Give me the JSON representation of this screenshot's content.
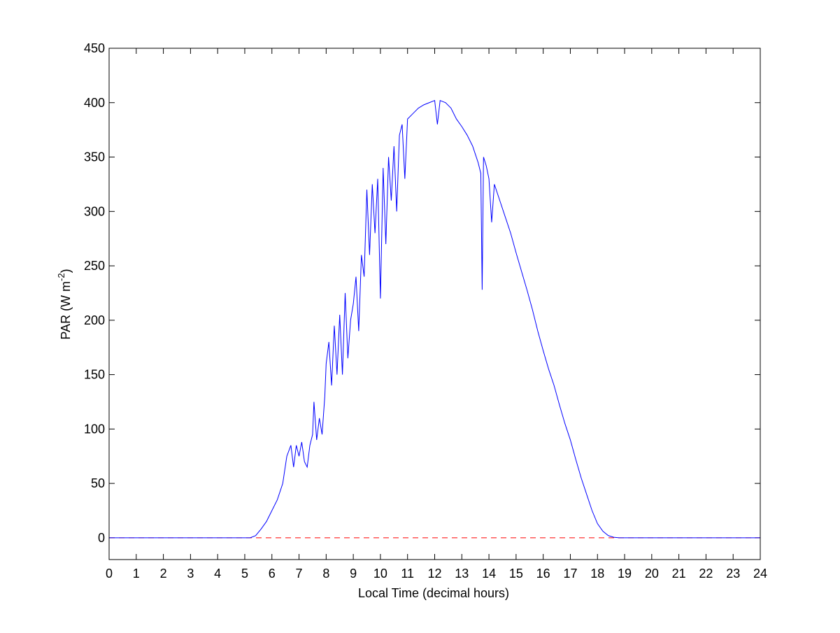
{
  "chart_data": {
    "type": "line",
    "xlabel": "Local Time (decimal hours)",
    "ylabel": {
      "text": "PAR (W m",
      "sup": "-2",
      "end": ")"
    },
    "x": [
      0,
      5,
      5.2,
      5.4,
      5.6,
      5.8,
      6,
      6.2,
      6.4,
      6.55,
      6.7,
      6.8,
      6.9,
      7,
      7.1,
      7.2,
      7.3,
      7.4,
      7.5,
      7.55,
      7.65,
      7.75,
      7.85,
      7.95,
      8,
      8.1,
      8.2,
      8.3,
      8.4,
      8.5,
      8.6,
      8.7,
      8.8,
      8.9,
      9,
      9.1,
      9.2,
      9.3,
      9.4,
      9.5,
      9.6,
      9.7,
      9.8,
      9.9,
      10,
      10.1,
      10.2,
      10.3,
      10.4,
      10.5,
      10.6,
      10.7,
      10.8,
      10.9,
      11,
      11.2,
      11.4,
      11.6,
      11.8,
      12,
      12.1,
      12.2,
      12.4,
      12.6,
      12.8,
      13,
      13.2,
      13.4,
      13.6,
      13.7,
      13.75,
      13.8,
      13.9,
      14,
      14.1,
      14.2,
      14.4,
      14.6,
      14.8,
      15,
      15.2,
      15.4,
      15.6,
      15.8,
      16,
      16.2,
      16.4,
      16.6,
      16.8,
      17,
      17.2,
      17.4,
      17.6,
      17.8,
      18,
      18.2,
      18.4,
      18.6,
      18.8,
      24
    ],
    "series": [
      {
        "color": "#0000ff",
        "values": [
          0,
          0,
          0,
          2,
          8,
          15,
          25,
          35,
          50,
          75,
          85,
          65,
          85,
          75,
          88,
          70,
          65,
          85,
          95,
          125,
          90,
          110,
          95,
          130,
          160,
          180,
          140,
          195,
          150,
          205,
          150,
          225,
          165,
          200,
          215,
          240,
          190,
          260,
          240,
          320,
          260,
          325,
          280,
          330,
          220,
          340,
          270,
          350,
          310,
          360,
          300,
          370,
          380,
          330,
          385,
          390,
          395,
          398,
          400,
          402,
          380,
          402,
          400,
          395,
          385,
          378,
          370,
          360,
          345,
          335,
          228,
          350,
          342,
          330,
          290,
          325,
          310,
          295,
          280,
          262,
          245,
          228,
          210,
          190,
          172,
          155,
          140,
          122,
          105,
          90,
          72,
          55,
          40,
          25,
          13,
          6,
          2,
          0.5,
          0,
          0
        ]
      }
    ],
    "reference_line": {
      "value": 0,
      "color": "#ff0000",
      "style": "dashed"
    },
    "xlim": [
      0,
      24
    ],
    "xticks": [
      0,
      1,
      2,
      3,
      4,
      5,
      6,
      7,
      8,
      9,
      10,
      11,
      12,
      13,
      14,
      15,
      16,
      17,
      18,
      19,
      20,
      21,
      22,
      23,
      24
    ],
    "ylim": [
      -20,
      450
    ],
    "yticks": [
      0,
      50,
      100,
      150,
      200,
      250,
      300,
      350,
      400,
      450
    ],
    "grid": false
  }
}
